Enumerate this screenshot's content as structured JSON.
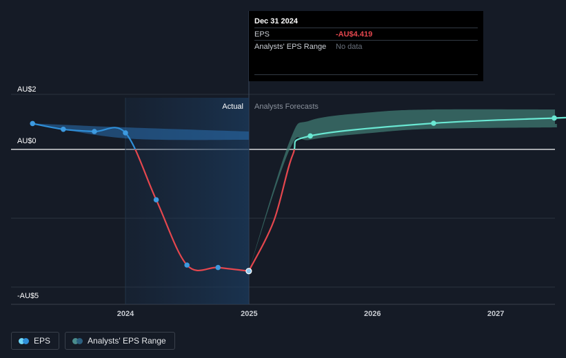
{
  "chart_data": {
    "type": "line",
    "x_ticks": [
      "2024",
      "2025",
      "2026",
      "2027"
    ],
    "y_ticks": [
      "AU$2",
      "AU$0",
      "-AU$5"
    ],
    "region_labels": {
      "actual": "Actual",
      "forecast": "Analysts Forecasts"
    },
    "series": [
      {
        "name": "EPS",
        "points": [
          {
            "x": "2023-04-01",
            "y": 0.94
          },
          {
            "x": "2023-07-01",
            "y": 0.73
          },
          {
            "x": "2023-10-01",
            "y": 0.65
          },
          {
            "x": "2024-01-01",
            "y": 0.6
          },
          {
            "x": "2024-04-01",
            "y": -1.83
          },
          {
            "x": "2024-07-01",
            "y": -4.2
          },
          {
            "x": "2024-10-01",
            "y": -4.29
          },
          {
            "x": "2024-12-31",
            "y": -4.419
          }
        ]
      },
      {
        "name": "EPS Forecast",
        "points": [
          {
            "x": "2024-12-31",
            "y": -4.419
          },
          {
            "x": "2025-07-01",
            "y": 0.49
          },
          {
            "x": "2026-07-01",
            "y": 0.95
          },
          {
            "x": "2027-07-01",
            "y": 1.14
          }
        ]
      },
      {
        "name": "Analysts' EPS Range",
        "band": [
          {
            "x": "2025-05-01",
            "low": 0.0,
            "high": 0.3
          },
          {
            "x": "2025-07-01",
            "low": 0.35,
            "high": 1.05
          },
          {
            "x": "2026-01-01",
            "low": 0.6,
            "high": 1.35
          },
          {
            "x": "2026-07-01",
            "low": 0.75,
            "high": 1.45
          },
          {
            "x": "2027-07-01",
            "low": 0.8,
            "high": 1.45
          }
        ]
      }
    ],
    "past_range_band": [
      {
        "x": "2023-04-01",
        "low": 0.94,
        "high": 0.94
      },
      {
        "x": "2024-01-01",
        "low": 0.4,
        "high": 0.8
      },
      {
        "x": "2024-12-31",
        "low": 0.35,
        "high": 0.65
      }
    ]
  },
  "tooltip": {
    "date": "Dec 31 2024",
    "eps_label": "EPS",
    "eps_value": "-AU$4.419",
    "range_label": "Analysts' EPS Range",
    "range_value": "No data"
  },
  "legend": [
    {
      "label": "EPS",
      "color_a": "#6fd6f7",
      "color_b": "#2f8fd8"
    },
    {
      "label": "Analysts' EPS Range",
      "color_a": "#4a8c8c",
      "color_b": "#2b5f7f"
    }
  ],
  "colors": {
    "positive_actual": "#2f8fd8",
    "negative": "#e5474e",
    "forecast": "#6ae8d3",
    "past_band": "#2a6fb0",
    "forecast_band": "#3f7a72"
  }
}
